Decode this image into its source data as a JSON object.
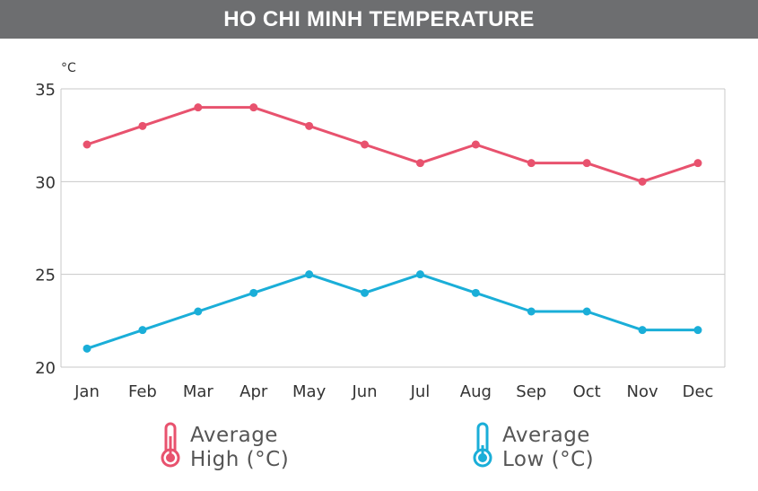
{
  "title": "HO CHI MINH TEMPERATURE",
  "colors": {
    "high": "#e8526e",
    "low": "#1aaed8",
    "grid": "#c8c8c8",
    "title_bg": "#6d6e70"
  },
  "chart_data": {
    "type": "line",
    "title": "HO CHI MINH TEMPERATURE",
    "unit_label": "°C",
    "categories": [
      "Jan",
      "Feb",
      "Mar",
      "Apr",
      "May",
      "Jun",
      "Jul",
      "Aug",
      "Sep",
      "Oct",
      "Nov",
      "Dec"
    ],
    "ylim": [
      20,
      35
    ],
    "yticks": [
      "20",
      "25",
      "30",
      "35"
    ],
    "grid": true,
    "legend_position": "bottom",
    "series": [
      {
        "name": "Average High (°C)",
        "legend_line1": "Average",
        "legend_line2": "High (°C)",
        "color": "#e8526e",
        "values": [
          32,
          33,
          34,
          34,
          33,
          32,
          31,
          32,
          31,
          31,
          30,
          31
        ]
      },
      {
        "name": "Average Low (°C)",
        "legend_line1": "Average",
        "legend_line2": "Low (°C)",
        "color": "#1aaed8",
        "values": [
          21,
          22,
          23,
          24,
          25,
          24,
          25,
          24,
          23,
          23,
          22,
          22
        ]
      }
    ]
  }
}
